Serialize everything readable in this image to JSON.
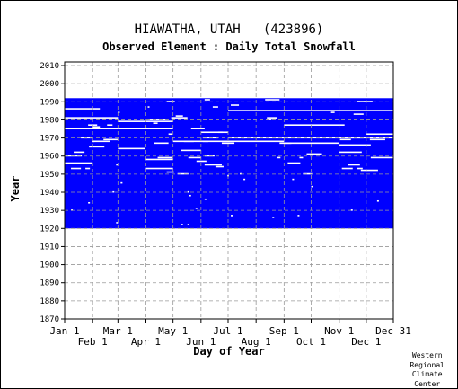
{
  "chart_data": {
    "type": "heatmap",
    "title": "HIAWATHA, UTAH   (423896)",
    "subtitle": "Observed Element : Daily Total Snowfall",
    "xlabel": "Day of Year",
    "ylabel": "Year",
    "ylim": [
      1870,
      2012
    ],
    "xlim": [
      1,
      365
    ],
    "y_ticks": [
      "1870",
      "1880",
      "1890",
      "1900",
      "1910",
      "1920",
      "1930",
      "1940",
      "1950",
      "1960",
      "1970",
      "1980",
      "1990",
      "2000",
      "2010"
    ],
    "x_ticks_top_row": [
      "Jan 1",
      "Mar 1",
      "May 1",
      "Jul 1",
      "Sep 1",
      "Nov 1",
      "Dec 31"
    ],
    "x_ticks_bottom_row": [
      "Feb 1",
      "Apr 1",
      "Jun 1",
      "Aug 1",
      "Oct 1",
      "Dec 1"
    ],
    "x_tick_days_top": [
      1,
      60,
      121,
      182,
      244,
      305,
      365
    ],
    "x_tick_days_bottom": [
      32,
      91,
      152,
      213,
      274,
      335
    ],
    "data_color": "#0000ff",
    "grid": true,
    "record_start_year": 1920,
    "record_end_year": 1992
  },
  "credit": [
    "Western",
    "Regional",
    "Climate",
    "Center"
  ]
}
